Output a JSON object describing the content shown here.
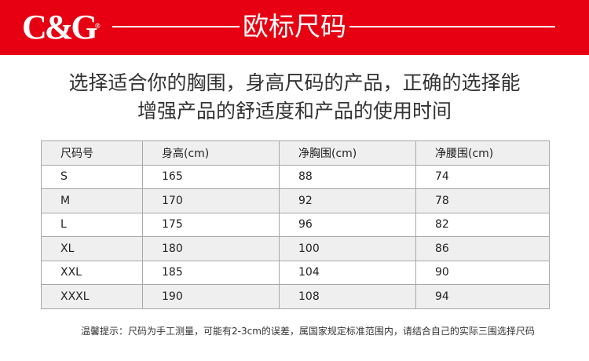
{
  "brand": {
    "logo_text": "C&G",
    "registered": "®",
    "accent": "#e60012"
  },
  "header": {
    "title": "欧标尺码"
  },
  "intro": {
    "line1": "选择适合你的胸围，身高尺码的产品，正确的选择能",
    "line2": "增强产品的舒适度和产品的使用时间"
  },
  "table": {
    "headers": [
      "尺码号",
      "身高(cm)",
      "净胸围(cm)",
      "净腰围(cm)"
    ],
    "rows": [
      [
        "S",
        "165",
        "88",
        "74"
      ],
      [
        "M",
        "170",
        "92",
        "78"
      ],
      [
        "L",
        "175",
        "96",
        "82"
      ],
      [
        "XL",
        "180",
        "100",
        "86"
      ],
      [
        "XXL",
        "185",
        "104",
        "90"
      ],
      [
        "XXXL",
        "190",
        "108",
        "94"
      ]
    ]
  },
  "note": "温馨提示：尺码为手工测量，可能有2-3cm的误差，属国家规定标准范围内，请结合自己的实际三围选择尺码"
}
